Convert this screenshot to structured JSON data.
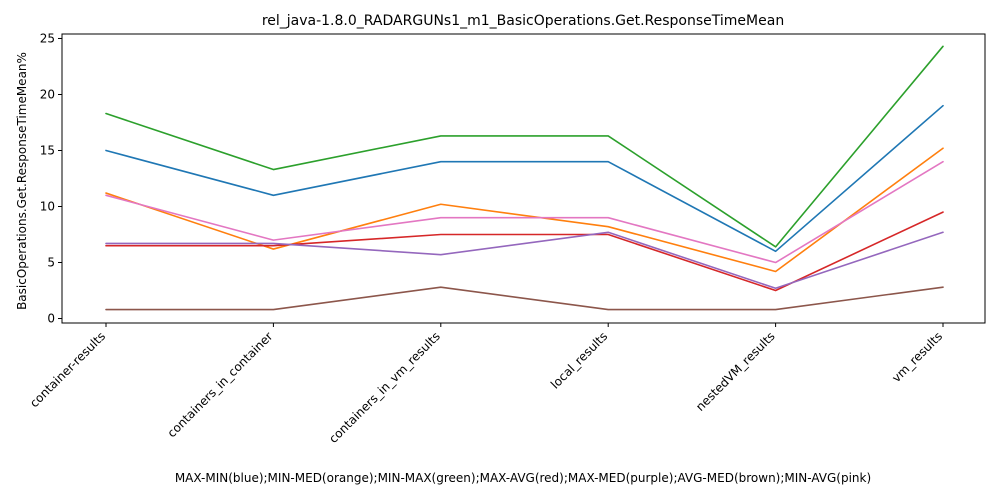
{
  "chart_data": {
    "type": "line",
    "title": "rel_java-1.8.0_RADARGUNs1_m1_BasicOperations.Get.ResponseTimeMean",
    "xlabel": "MAX-MIN(blue);MIN-MED(orange);MIN-MAX(green);MAX-AVG(red);MAX-MED(purple);AVG-MED(brown);MIN-AVG(pink)",
    "ylabel": "BasicOperations.Get.ResponseTimeMean%",
    "categories": [
      "container-results",
      "containers_in_container",
      "containers_in_vm_results",
      "local_results",
      "nestedVM_results",
      "vm_results"
    ],
    "ylim": [
      -0.4,
      25.4
    ],
    "yticks": [
      0,
      5,
      10,
      15,
      20,
      25
    ],
    "grid": false,
    "series": [
      {
        "color": "#1f77b4",
        "values": [
          15.0,
          11.0,
          14.0,
          14.0,
          6.0,
          19.0
        ]
      },
      {
        "color": "#ff7f0e",
        "values": [
          11.2,
          6.2,
          10.2,
          8.2,
          4.2,
          15.2
        ]
      },
      {
        "color": "#2ca02c",
        "values": [
          18.3,
          13.3,
          16.3,
          16.3,
          6.4,
          24.3
        ]
      },
      {
        "color": "#d62728",
        "values": [
          6.5,
          6.5,
          7.5,
          7.5,
          2.5,
          9.5
        ]
      },
      {
        "color": "#9467bd",
        "values": [
          6.7,
          6.7,
          5.7,
          7.7,
          2.7,
          7.7
        ]
      },
      {
        "color": "#8c564b",
        "values": [
          0.8,
          0.8,
          2.8,
          0.8,
          0.8,
          2.8
        ]
      },
      {
        "color": "#e377c2",
        "values": [
          11.0,
          7.0,
          9.0,
          9.0,
          5.0,
          14.0
        ]
      }
    ]
  }
}
